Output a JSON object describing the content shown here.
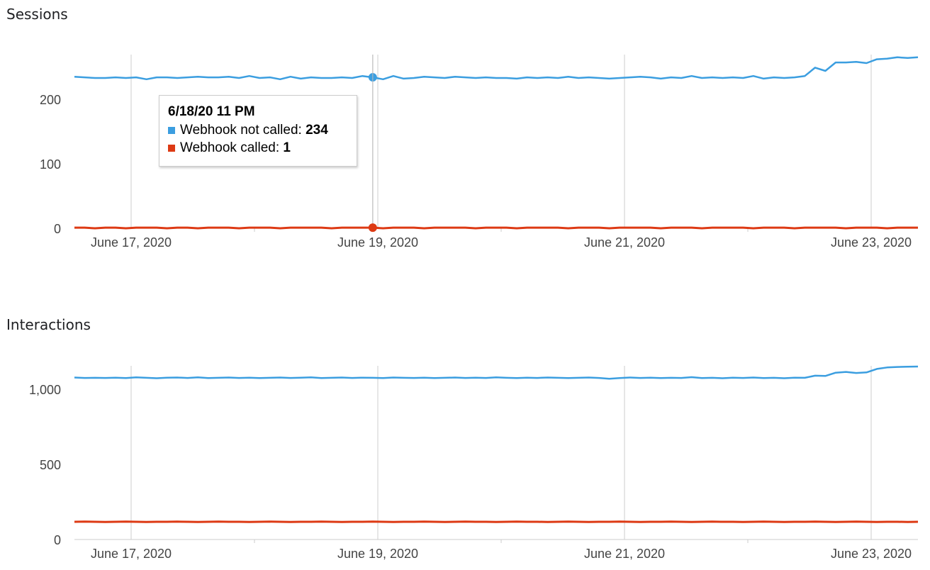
{
  "chart_data": [
    {
      "type": "line",
      "title": "Sessions",
      "xlim": [
        "2020-06-16 13:00",
        "2020-06-23 09:00"
      ],
      "x_ticks": [
        "June 17, 2020",
        "June 19, 2020",
        "June 21, 2020",
        "June 23, 2020"
      ],
      "ylim": [
        0,
        270
      ],
      "y_ticks": [
        0,
        100,
        200
      ],
      "y_tick_labels": [
        "0",
        "100",
        "200"
      ],
      "grid": "vertical at labeled dates",
      "series": [
        {
          "name": "Webhook not called",
          "color": "#3b9ee0",
          "values": [
            235,
            234,
            233,
            233,
            234,
            233,
            234,
            231,
            234,
            234,
            233,
            234,
            235,
            234,
            234,
            235,
            233,
            236,
            233,
            234,
            231,
            235,
            232,
            234,
            233,
            233,
            234,
            233,
            236,
            234,
            231,
            236,
            232,
            233,
            235,
            234,
            233,
            235,
            234,
            233,
            234,
            233,
            233,
            232,
            234,
            233,
            234,
            233,
            235,
            233,
            234,
            233,
            232,
            233,
            234,
            235,
            234,
            232,
            234,
            233,
            236,
            233,
            234,
            233,
            234,
            233,
            236,
            232,
            234,
            233,
            234,
            236,
            249,
            244,
            257,
            257,
            258,
            256,
            262,
            263,
            265,
            264,
            265
          ]
        },
        {
          "name": "Webhook called",
          "color": "#dd3a14",
          "values": [
            1,
            1,
            0,
            1,
            1,
            0,
            1,
            1,
            1,
            0,
            1,
            1,
            0,
            1,
            1,
            1,
            0,
            1,
            1,
            1,
            0,
            1,
            1,
            1,
            1,
            0,
            1,
            1,
            1,
            1,
            0,
            1,
            1,
            1,
            0,
            1,
            1,
            1,
            1,
            0,
            1,
            1,
            1,
            0,
            1,
            1,
            1,
            1,
            0,
            1,
            1,
            1,
            0,
            1,
            1,
            1,
            1,
            0,
            1,
            1,
            1,
            0,
            1,
            1,
            1,
            1,
            0,
            1,
            1,
            1,
            0,
            1,
            1,
            1,
            1,
            0,
            1,
            1,
            1,
            0,
            1,
            1,
            1
          ]
        }
      ],
      "tooltip": {
        "title": "6/18/20 11 PM",
        "rows": [
          {
            "label": "Webhook not called: ",
            "value": "234",
            "color": "#3b9ee0"
          },
          {
            "label": "Webhook called: ",
            "value": "1",
            "color": "#dd3a14"
          }
        ],
        "point_index": 29
      }
    },
    {
      "type": "line",
      "title": "Interactions",
      "xlim": [
        "2020-06-16 13:00",
        "2020-06-23 09:00"
      ],
      "x_ticks": [
        "June 17, 2020",
        "June 19, 2020",
        "June 21, 2020",
        "June 23, 2020"
      ],
      "ylim": [
        0,
        1160
      ],
      "y_ticks": [
        0,
        500,
        1000
      ],
      "y_tick_labels": [
        "0",
        "500",
        "1,000"
      ],
      "grid": "vertical at labeled dates",
      "series": [
        {
          "name": "Webhook not called",
          "color": "#3b9ee0",
          "values": [
            1078,
            1075,
            1076,
            1075,
            1077,
            1074,
            1079,
            1076,
            1073,
            1077,
            1078,
            1075,
            1079,
            1074,
            1076,
            1078,
            1075,
            1077,
            1074,
            1076,
            1078,
            1075,
            1077,
            1079,
            1074,
            1076,
            1078,
            1075,
            1077,
            1076,
            1074,
            1078,
            1076,
            1075,
            1077,
            1074,
            1076,
            1078,
            1075,
            1077,
            1075,
            1079,
            1076,
            1074,
            1077,
            1075,
            1078,
            1076,
            1074,
            1076,
            1078,
            1075,
            1070,
            1074,
            1078,
            1075,
            1077,
            1074,
            1076,
            1075,
            1080,
            1074,
            1076,
            1073,
            1077,
            1075,
            1078,
            1074,
            1076,
            1073,
            1077,
            1076,
            1090,
            1088,
            1110,
            1115,
            1108,
            1112,
            1135,
            1145,
            1148,
            1150,
            1151
          ]
        },
        {
          "name": "Webhook called",
          "color": "#dd3a14",
          "values": [
            118,
            119,
            118,
            117,
            118,
            119,
            118,
            117,
            118,
            118,
            119,
            118,
            117,
            118,
            119,
            118,
            118,
            117,
            118,
            119,
            118,
            117,
            118,
            118,
            119,
            118,
            117,
            118,
            118,
            119,
            118,
            117,
            118,
            118,
            119,
            118,
            117,
            118,
            119,
            118,
            118,
            117,
            118,
            119,
            118,
            118,
            117,
            118,
            119,
            118,
            117,
            118,
            118,
            119,
            118,
            117,
            118,
            118,
            119,
            118,
            117,
            118,
            119,
            118,
            118,
            117,
            118,
            119,
            118,
            117,
            118,
            118,
            119,
            118,
            117,
            118,
            119,
            118,
            117,
            118,
            118,
            117,
            118
          ]
        }
      ]
    }
  ]
}
